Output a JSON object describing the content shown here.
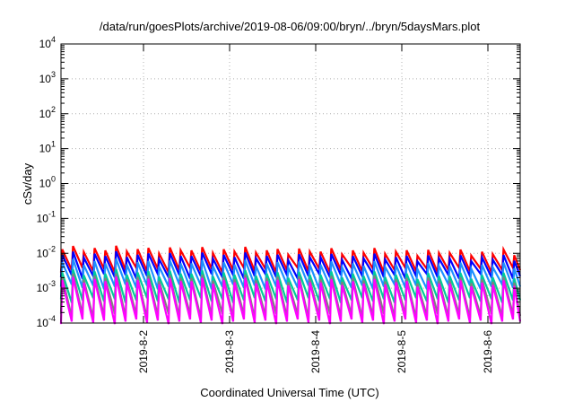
{
  "chart_data": {
    "type": "line",
    "title": "/data/run/goesPlots/archive/2019-08-06/09:00/bryn/../bryn/5daysMars.plot",
    "xlabel": "Coordinated Universal Time (UTC)",
    "ylabel": "cSv/day",
    "yscale": "log",
    "ylim": [
      0.0001,
      10000
    ],
    "xlim": [
      "2019-08-01T01:00",
      "2019-08-06T09:00"
    ],
    "grid": true,
    "y_ticks": [
      {
        "base": "10",
        "exp": "-4",
        "value": 0.0001
      },
      {
        "base": "10",
        "exp": "-3",
        "value": 0.001
      },
      {
        "base": "10",
        "exp": "-2",
        "value": 0.01
      },
      {
        "base": "10",
        "exp": "-1",
        "value": 0.1
      },
      {
        "base": "10",
        "exp": "0",
        "value": 1
      },
      {
        "base": "10",
        "exp": "1",
        "value": 10
      },
      {
        "base": "10",
        "exp": "2",
        "value": 100
      },
      {
        "base": "10",
        "exp": "3",
        "value": 1000
      },
      {
        "base": "10",
        "exp": "4",
        "value": 10000
      }
    ],
    "x_ticks": [
      {
        "label": "2019-8-2",
        "value": "2019-08-02T00:00"
      },
      {
        "label": "2019-8-3",
        "value": "2019-08-03T00:00"
      },
      {
        "label": "2019-8-4",
        "value": "2019-08-04T00:00"
      },
      {
        "label": "2019-8-5",
        "value": "2019-08-05T00:00"
      },
      {
        "label": "2019-8-6",
        "value": "2019-08-06T00:00"
      }
    ],
    "series": [
      {
        "color": "#ff0000",
        "peak": 0.013,
        "trough": 0.0033,
        "lead": 0
      },
      {
        "color": "#0000ff",
        "peak": 0.009,
        "trough": 0.0022,
        "lead": 0
      },
      {
        "color": "#1e90ff",
        "peak": 0.0055,
        "trough": 0.0011,
        "lead": 0.4
      },
      {
        "color": "#00cc99",
        "peak": 0.0028,
        "trough": 0.00045,
        "lead": 0.7
      },
      {
        "color": "#808080",
        "peak": 0.0021,
        "trough": 0.00016,
        "lead": 1.0
      },
      {
        "color": "#ff00ff",
        "peak": 0.0017,
        "trough": 0.00011,
        "lead": 1.2
      }
    ],
    "pattern": {
      "teeth_per_day": 8,
      "variation": [
        1.0,
        1.25,
        0.85,
        1.1,
        0.95,
        1.3,
        0.9,
        1.05,
        1.15,
        0.8,
        1.2,
        1.0
      ]
    }
  }
}
